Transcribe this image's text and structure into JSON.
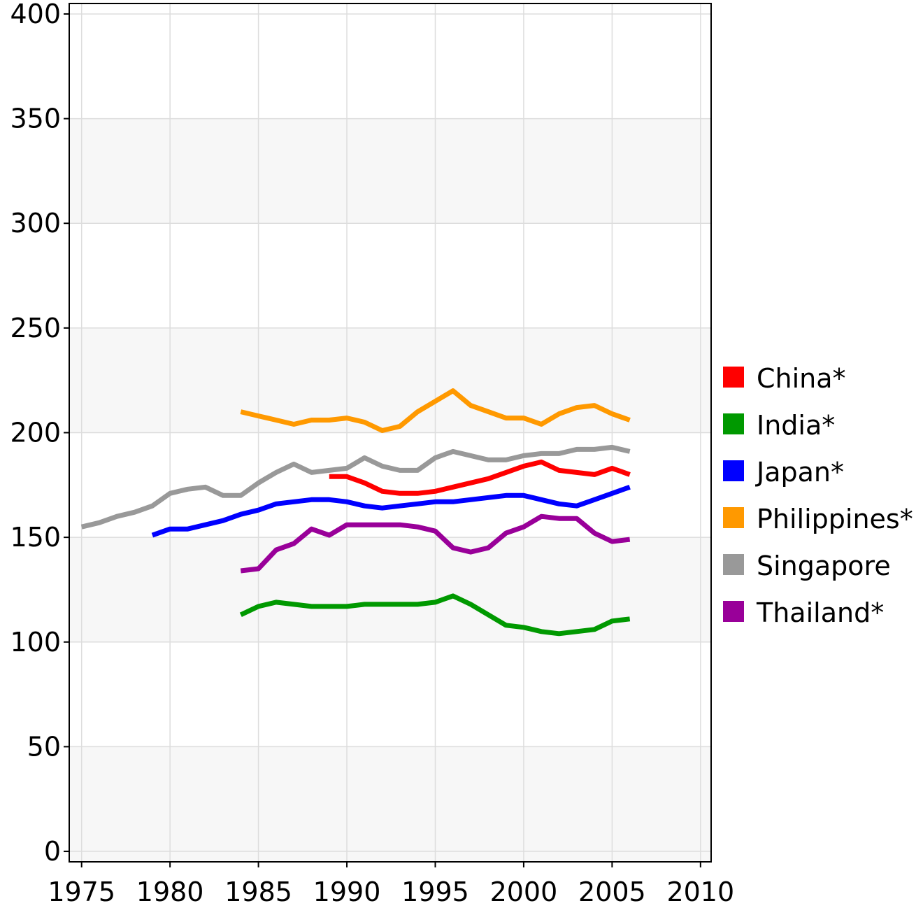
{
  "chart_data": {
    "type": "line",
    "title": "",
    "xlabel": "",
    "ylabel": "",
    "xlim": [
      1974.3,
      2010.6
    ],
    "ylim": [
      -5,
      405
    ],
    "xticks": [
      1975,
      1980,
      1985,
      1990,
      1995,
      2000,
      2005,
      2010
    ],
    "yticks": [
      0,
      50,
      100,
      150,
      200,
      250,
      300,
      350,
      400
    ],
    "grid": true,
    "legend_position": "right",
    "background_bands": [
      "#ffffff",
      "#f7f7f7"
    ],
    "series": [
      {
        "name": "China*",
        "color": "#ff0000",
        "x": [
          1989,
          1990,
          1991,
          1992,
          1993,
          1994,
          1995,
          1996,
          1997,
          1998,
          1999,
          2000,
          2001,
          2002,
          2003,
          2004,
          2005,
          2006
        ],
        "y": [
          179,
          179,
          176,
          172,
          171,
          171,
          172,
          174,
          176,
          178,
          181,
          184,
          186,
          182,
          181,
          180,
          183,
          180
        ]
      },
      {
        "name": "India*",
        "color": "#009900",
        "x": [
          1984,
          1985,
          1986,
          1987,
          1988,
          1989,
          1990,
          1991,
          1992,
          1993,
          1994,
          1995,
          1996,
          1997,
          1998,
          1999,
          2000,
          2001,
          2002,
          2003,
          2004,
          2005,
          2006
        ],
        "y": [
          113,
          117,
          119,
          118,
          117,
          117,
          117,
          118,
          118,
          118,
          118,
          119,
          122,
          118,
          113,
          108,
          107,
          105,
          104,
          105,
          106,
          110,
          111
        ]
      },
      {
        "name": "Japan*",
        "color": "#0000ff",
        "x": [
          1979,
          1980,
          1981,
          1982,
          1983,
          1984,
          1985,
          1986,
          1987,
          1988,
          1989,
          1990,
          1991,
          1992,
          1993,
          1994,
          1995,
          1996,
          1997,
          1998,
          1999,
          2000,
          2001,
          2002,
          2003,
          2004,
          2005,
          2006
        ],
        "y": [
          151,
          154,
          154,
          156,
          158,
          161,
          163,
          166,
          167,
          168,
          168,
          167,
          165,
          164,
          165,
          166,
          167,
          167,
          168,
          169,
          170,
          170,
          168,
          166,
          165,
          168,
          171,
          174
        ]
      },
      {
        "name": "Philippines*",
        "color": "#ff9900",
        "x": [
          1984,
          1985,
          1986,
          1987,
          1988,
          1989,
          1990,
          1991,
          1992,
          1993,
          1994,
          1995,
          1996,
          1997,
          1998,
          1999,
          2000,
          2001,
          2002,
          2003,
          2004,
          2005,
          2006
        ],
        "y": [
          210,
          208,
          206,
          204,
          206,
          206,
          207,
          205,
          201,
          203,
          210,
          215,
          220,
          213,
          210,
          207,
          207,
          204,
          209,
          212,
          213,
          209,
          206
        ]
      },
      {
        "name": "Singapore",
        "color": "#999999",
        "x": [
          1975,
          1976,
          1977,
          1978,
          1979,
          1980,
          1981,
          1982,
          1983,
          1984,
          1985,
          1986,
          1987,
          1988,
          1989,
          1990,
          1991,
          1992,
          1993,
          1994,
          1995,
          1996,
          1997,
          1998,
          1999,
          2000,
          2001,
          2002,
          2003,
          2004,
          2005,
          2006
        ],
        "y": [
          155,
          157,
          160,
          162,
          165,
          171,
          173,
          174,
          170,
          170,
          176,
          181,
          185,
          181,
          182,
          183,
          188,
          184,
          182,
          182,
          188,
          191,
          189,
          187,
          187,
          189,
          190,
          190,
          192,
          192,
          193,
          191
        ]
      },
      {
        "name": "Thailand*",
        "color": "#990099",
        "x": [
          1984,
          1985,
          1986,
          1987,
          1988,
          1989,
          1990,
          1991,
          1992,
          1993,
          1994,
          1995,
          1996,
          1997,
          1998,
          1999,
          2000,
          2001,
          2002,
          2003,
          2004,
          2005,
          2006
        ],
        "y": [
          134,
          135,
          144,
          147,
          154,
          151,
          156,
          156,
          156,
          156,
          155,
          153,
          145,
          143,
          145,
          152,
          155,
          160,
          159,
          159,
          152,
          148,
          149
        ]
      }
    ]
  }
}
